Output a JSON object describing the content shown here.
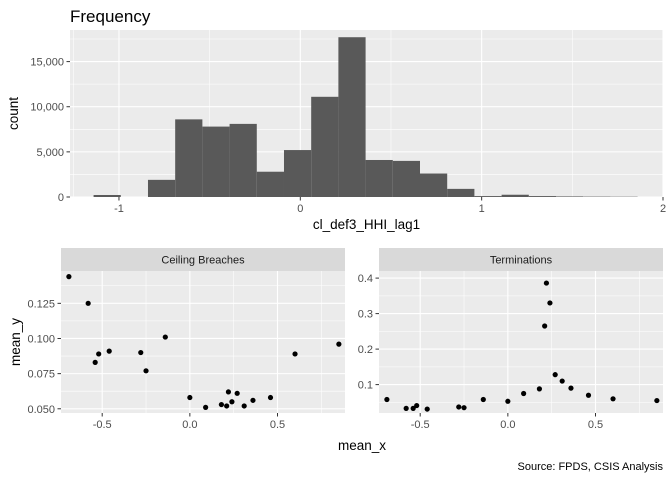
{
  "caption": "Source: FPDS, CSIS Analysis",
  "chart_data": [
    {
      "type": "bar",
      "title": "Frequency",
      "xlabel": "cl_def3_HHI_lag1",
      "ylabel": "count",
      "xlim": [
        -1.27,
        2.0
      ],
      "ylim": [
        0,
        18500
      ],
      "x_ticks": [
        -1,
        0,
        1,
        2
      ],
      "x_tick_labels": [
        "-1",
        "0",
        "1",
        "2"
      ],
      "y_ticks": [
        0,
        5000,
        10000,
        15000
      ],
      "y_tick_labels": [
        "0",
        "5,000",
        "10,000",
        "15,000"
      ],
      "bin_width": 0.15,
      "bin_starts": [
        -1.14,
        -0.99,
        -0.84,
        -0.69,
        -0.54,
        -0.39,
        -0.24,
        -0.09,
        0.06,
        0.21,
        0.36,
        0.51,
        0.66,
        0.81,
        0.96,
        1.11,
        1.26,
        1.41,
        1.56,
        1.71
      ],
      "values": [
        220,
        0,
        1900,
        8600,
        7800,
        8100,
        2800,
        5200,
        11100,
        17700,
        4100,
        4000,
        2600,
        900,
        100,
        250,
        100,
        60,
        40,
        30
      ],
      "grid": true,
      "bar_color": "#595959"
    },
    {
      "type": "scatter",
      "panel": "Ceiling Breaches",
      "xlabel": "mean_x",
      "ylabel": "mean_y",
      "xlim": [
        -0.735,
        0.885
      ],
      "ylim": [
        0.047,
        0.148
      ],
      "x_ticks": [
        -0.5,
        0.0,
        0.5
      ],
      "x_tick_labels": [
        "-0.5",
        "0.0",
        "0.5"
      ],
      "y_ticks": [
        0.05,
        0.075,
        0.1,
        0.125
      ],
      "y_tick_labels": [
        "0.050",
        "0.075",
        "0.100",
        "0.125"
      ],
      "points": [
        [
          -0.69,
          0.144
        ],
        [
          -0.58,
          0.125
        ],
        [
          -0.54,
          0.083
        ],
        [
          -0.52,
          0.089
        ],
        [
          -0.46,
          0.091
        ],
        [
          -0.28,
          0.09
        ],
        [
          -0.25,
          0.077
        ],
        [
          -0.14,
          0.101
        ],
        [
          0.0,
          0.058
        ],
        [
          0.09,
          0.051
        ],
        [
          0.18,
          0.053
        ],
        [
          0.21,
          0.052
        ],
        [
          0.22,
          0.062
        ],
        [
          0.24,
          0.055
        ],
        [
          0.27,
          0.061
        ],
        [
          0.31,
          0.052
        ],
        [
          0.36,
          0.056
        ],
        [
          0.46,
          0.058
        ],
        [
          0.6,
          0.089
        ],
        [
          0.85,
          0.096
        ]
      ]
    },
    {
      "type": "scatter",
      "panel": "Terminations",
      "xlabel": "mean_x",
      "ylabel": "mean_y",
      "xlim": [
        -0.735,
        0.885
      ],
      "ylim": [
        0.02,
        0.42
      ],
      "x_ticks": [
        -0.5,
        0.0,
        0.5
      ],
      "x_tick_labels": [
        "-0.5",
        "0.0",
        "0.5"
      ],
      "y_ticks": [
        0.1,
        0.2,
        0.3,
        0.4
      ],
      "y_tick_labels": [
        "0.1",
        "0.2",
        "0.3",
        "0.4"
      ],
      "points": [
        [
          -0.69,
          0.058
        ],
        [
          -0.58,
          0.033
        ],
        [
          -0.54,
          0.033
        ],
        [
          -0.52,
          0.041
        ],
        [
          -0.46,
          0.031
        ],
        [
          -0.28,
          0.037
        ],
        [
          -0.25,
          0.035
        ],
        [
          -0.14,
          0.058
        ],
        [
          0.0,
          0.053
        ],
        [
          0.09,
          0.075
        ],
        [
          0.18,
          0.088
        ],
        [
          0.21,
          0.265
        ],
        [
          0.22,
          0.386
        ],
        [
          0.24,
          0.33
        ],
        [
          0.27,
          0.128
        ],
        [
          0.31,
          0.11
        ],
        [
          0.36,
          0.09
        ],
        [
          0.46,
          0.07
        ],
        [
          0.6,
          0.06
        ],
        [
          0.85,
          0.055
        ]
      ]
    }
  ]
}
